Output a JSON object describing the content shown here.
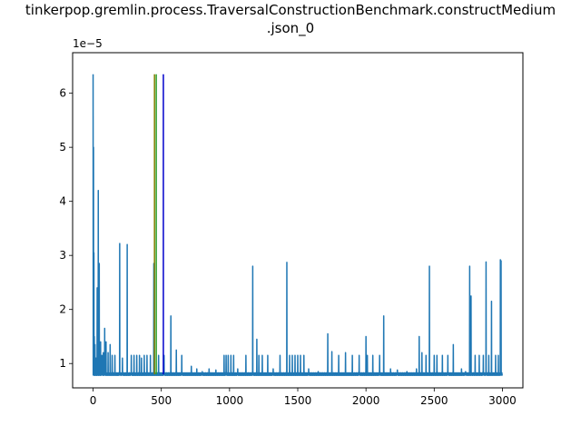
{
  "chart_data": {
    "type": "line",
    "title_line1": "tinkerpop.gremlin.process.TraversalConstructionBenchmark.constructMedium",
    "title_line2": ".json_0",
    "xlabel": "",
    "ylabel": "",
    "y_offset_label": "1e−5",
    "xlim": [
      -150,
      3150
    ],
    "ylim": [
      0.55,
      6.75
    ],
    "x_ticks": [
      0,
      500,
      1000,
      1500,
      2000,
      2500,
      3000
    ],
    "x_tick_labels": [
      "0",
      "500",
      "1000",
      "1500",
      "2000",
      "2500",
      "3000"
    ],
    "y_ticks": [
      1,
      2,
      3,
      4,
      5,
      6
    ],
    "y_tick_labels": [
      "1",
      "2",
      "3",
      "4",
      "5",
      "6"
    ],
    "grid": false,
    "series": [
      {
        "color": "#1f77b4",
        "baseline": 0.8,
        "n_points": 3000,
        "spikes": [
          [
            0,
            6.35
          ],
          [
            3,
            5.0
          ],
          [
            6,
            3.05
          ],
          [
            9,
            1.5
          ],
          [
            14,
            1.35
          ],
          [
            22,
            1.1
          ],
          [
            30,
            2.4
          ],
          [
            38,
            4.2
          ],
          [
            45,
            2.85
          ],
          [
            55,
            1.4
          ],
          [
            65,
            1.15
          ],
          [
            75,
            1.2
          ],
          [
            85,
            1.65
          ],
          [
            95,
            1.4
          ],
          [
            110,
            1.2
          ],
          [
            125,
            1.35
          ],
          [
            140,
            1.15
          ],
          [
            160,
            1.15
          ],
          [
            195,
            3.22
          ],
          [
            215,
            1.1
          ],
          [
            250,
            3.2
          ],
          [
            280,
            1.15
          ],
          [
            300,
            1.15
          ],
          [
            320,
            1.15
          ],
          [
            340,
            1.15
          ],
          [
            355,
            1.1
          ],
          [
            375,
            1.15
          ],
          [
            395,
            1.15
          ],
          [
            420,
            1.15
          ],
          [
            445,
            2.85
          ],
          [
            480,
            1.15
          ],
          [
            520,
            1.15
          ],
          [
            570,
            1.88
          ],
          [
            610,
            1.25
          ],
          [
            650,
            1.15
          ],
          [
            720,
            0.95
          ],
          [
            760,
            0.9
          ],
          [
            800,
            0.85
          ],
          [
            850,
            0.9
          ],
          [
            900,
            0.88
          ],
          [
            960,
            1.15
          ],
          [
            975,
            1.15
          ],
          [
            990,
            1.15
          ],
          [
            1010,
            1.15
          ],
          [
            1030,
            1.15
          ],
          [
            1060,
            0.9
          ],
          [
            1120,
            1.15
          ],
          [
            1170,
            2.8
          ],
          [
            1200,
            1.45
          ],
          [
            1215,
            1.15
          ],
          [
            1240,
            1.15
          ],
          [
            1280,
            1.15
          ],
          [
            1320,
            0.9
          ],
          [
            1370,
            1.15
          ],
          [
            1420,
            2.87
          ],
          [
            1440,
            1.15
          ],
          [
            1460,
            1.15
          ],
          [
            1480,
            1.15
          ],
          [
            1500,
            1.15
          ],
          [
            1520,
            1.15
          ],
          [
            1545,
            1.15
          ],
          [
            1580,
            0.9
          ],
          [
            1650,
            0.85
          ],
          [
            1720,
            1.55
          ],
          [
            1750,
            1.22
          ],
          [
            1800,
            1.15
          ],
          [
            1850,
            1.2
          ],
          [
            1900,
            1.15
          ],
          [
            1950,
            1.15
          ],
          [
            2000,
            1.5
          ],
          [
            2010,
            1.15
          ],
          [
            2050,
            1.15
          ],
          [
            2100,
            1.15
          ],
          [
            2130,
            1.88
          ],
          [
            2180,
            0.9
          ],
          [
            2230,
            0.88
          ],
          [
            2300,
            0.85
          ],
          [
            2370,
            0.9
          ],
          [
            2390,
            1.5
          ],
          [
            2410,
            1.2
          ],
          [
            2440,
            1.15
          ],
          [
            2465,
            2.8
          ],
          [
            2500,
            1.15
          ],
          [
            2520,
            1.15
          ],
          [
            2560,
            1.15
          ],
          [
            2600,
            1.15
          ],
          [
            2640,
            1.35
          ],
          [
            2700,
            0.9
          ],
          [
            2730,
            0.85
          ],
          [
            2760,
            2.8
          ],
          [
            2770,
            2.25
          ],
          [
            2800,
            1.15
          ],
          [
            2830,
            1.15
          ],
          [
            2860,
            1.15
          ],
          [
            2880,
            2.88
          ],
          [
            2900,
            1.15
          ],
          [
            2920,
            2.15
          ],
          [
            2950,
            1.15
          ],
          [
            2970,
            1.15
          ],
          [
            2985,
            2.92
          ],
          [
            2990,
            2.9
          ]
        ]
      }
    ],
    "vertical_lines": [
      {
        "x": 450,
        "y0": 0.8,
        "y1": 6.35,
        "color": "#7f7f00"
      },
      {
        "x": 463,
        "y0": 0.8,
        "y1": 6.35,
        "color": "#2ca02c"
      },
      {
        "x": 515,
        "y0": 0.8,
        "y1": 6.35,
        "color": "#0000cc"
      }
    ]
  }
}
